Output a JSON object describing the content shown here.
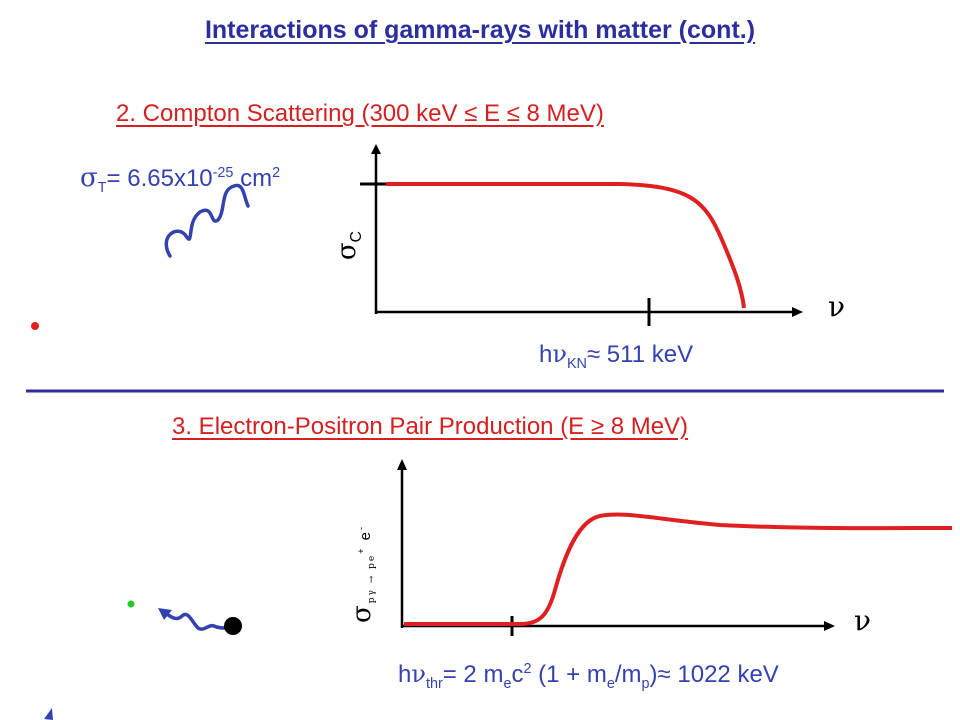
{
  "title": "Interactions of gamma-rays with matter (cont.)",
  "compton": {
    "heading": "2. Compton Scattering (300 keV ≤ E ≤ 8 MeV)",
    "sigma_t": {
      "symbol": "σ",
      "subscript": "T",
      "value": "= 6.65x10",
      "exponent": "-25",
      "unit": " cm",
      "unit_exp": "2"
    },
    "axis_y": {
      "symbol": "σ",
      "subscript": "C"
    },
    "axis_x": "ν",
    "marker_label": {
      "prefix": "h",
      "symbol": "ν",
      "subscript": "KN",
      "value": "≈ 511 keV"
    }
  },
  "pair": {
    "heading": "3. Electron-Positron Pair Production (E ≥ 8 MeV)",
    "axis_y": {
      "symbol": "σ",
      "subscript": "pγ → pe",
      "sup_plus": "+",
      "e_letter": " e",
      "sup_minus": "-"
    },
    "axis_x": "ν",
    "threshold_label": {
      "prefix": "h",
      "symbol": "ν",
      "subscript": "thr",
      "eq": "= 2 m",
      "me_sub": "e",
      "c": "c",
      "c_exp": "2",
      "paren_open": " (1 + m",
      "me2_sub": "e",
      "slash_m": "/m",
      "mp_sub": "p",
      "tail": ")≈ 1022 keV"
    }
  },
  "colors": {
    "title": "#2b2f9e",
    "heading": "#d42020",
    "curve": "#e02020",
    "blue": "#3442b0",
    "axis": "#000000",
    "divider": "#2b2f9e"
  }
}
